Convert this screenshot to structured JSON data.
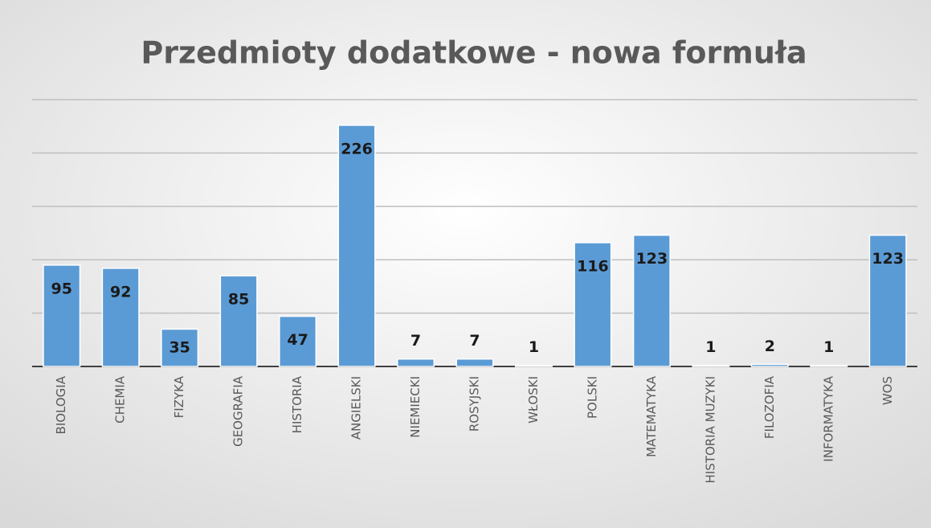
{
  "chart_data": {
    "type": "bar",
    "title": "Przedmioty dodatkowe - nowa formuła",
    "categories": [
      "BIOLOGIA",
      "CHEMIA",
      "FIZYKA",
      "GEOGRAFIA",
      "HISTORIA",
      "ANGIELSKI",
      "NIEMIECKI",
      "ROSYJSKI",
      "WŁOSKI",
      "POLSKI",
      "MATEMATYKA",
      "HISTORIA MUZYKI",
      "FILOZOFIA",
      "INFORMATYKA",
      "WOS"
    ],
    "values": [
      95,
      92,
      35,
      85,
      47,
      226,
      7,
      7,
      1,
      116,
      123,
      1,
      2,
      1,
      123
    ],
    "color": "#5b9bd5",
    "ylim": [
      0,
      250
    ],
    "yticks": [
      0,
      50,
      100,
      150,
      200,
      250
    ],
    "grid": true
  }
}
